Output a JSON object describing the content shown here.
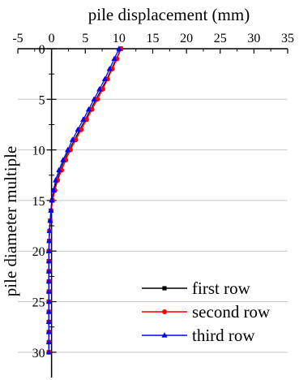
{
  "chart_data": {
    "type": "line",
    "title": "",
    "xlabel": "pile displacement (mm)",
    "ylabel": "pile diameter multiple",
    "xlim": [
      -5,
      35
    ],
    "ylim": [
      0,
      32.5
    ],
    "y_inverted": true,
    "x_axis_position": "top",
    "x_ticks": [
      "-5",
      "0",
      "5",
      "10",
      "15",
      "20",
      "25",
      "30",
      "35"
    ],
    "y_ticks": [
      "0",
      "5",
      "10",
      "15",
      "20",
      "25",
      "30"
    ],
    "x_tick_values": [
      -5,
      0,
      5,
      10,
      15,
      20,
      25,
      30,
      35
    ],
    "y_tick_values": [
      0,
      5,
      10,
      15,
      20,
      25,
      30
    ],
    "grid": "horizontal",
    "legend_position": "bottom-right",
    "series": [
      {
        "name": "first row",
        "color": "#000000",
        "marker": "square",
        "x": [
          10.3,
          9.6,
          8.9,
          8.2,
          7.4,
          6.6,
          5.8,
          5.0,
          4.2,
          3.4,
          2.6,
          1.9,
          1.3,
          0.8,
          0.4,
          0.1,
          -0.1,
          -0.2,
          -0.3,
          -0.35,
          -0.4,
          -0.4,
          -0.4,
          -0.4,
          -0.4,
          -0.4,
          -0.4,
          -0.4,
          -0.4,
          -0.4,
          -0.4
        ],
        "y": [
          0,
          1,
          2,
          3,
          4,
          5,
          6,
          7,
          8,
          9,
          10,
          11,
          12,
          13,
          14,
          15,
          16,
          17,
          18,
          19,
          20,
          21,
          22,
          23,
          24,
          25,
          26,
          27,
          28,
          29,
          30
        ]
      },
      {
        "name": "second row",
        "color": "#ff0000",
        "marker": "circle",
        "x": [
          10.3,
          9.7,
          9.0,
          8.3,
          7.6,
          6.8,
          6.0,
          5.2,
          4.4,
          3.6,
          2.8,
          2.1,
          1.5,
          0.9,
          0.5,
          0.15,
          -0.05,
          -0.2,
          -0.3,
          -0.35,
          -0.4,
          -0.4,
          -0.4,
          -0.4,
          -0.4,
          -0.4,
          -0.4,
          -0.4,
          -0.4,
          -0.4,
          -0.4
        ],
        "y": [
          0,
          1,
          2,
          3,
          4,
          5,
          6,
          7,
          8,
          9,
          10,
          11,
          12,
          13,
          14,
          15,
          16,
          17,
          18,
          19,
          20,
          21,
          22,
          23,
          24,
          25,
          26,
          27,
          28,
          29,
          30
        ]
      },
      {
        "name": "third row",
        "color": "#0000ff",
        "marker": "triangle",
        "x": [
          10.0,
          9.3,
          8.6,
          7.9,
          7.1,
          6.3,
          5.5,
          4.7,
          3.9,
          3.1,
          2.4,
          1.7,
          1.1,
          0.6,
          0.3,
          0.05,
          -0.1,
          -0.2,
          -0.3,
          -0.35,
          -0.4,
          -0.4,
          -0.4,
          -0.4,
          -0.4,
          -0.4,
          -0.4,
          -0.4,
          -0.4,
          -0.4,
          -0.4
        ],
        "y": [
          0,
          1,
          2,
          3,
          4,
          5,
          6,
          7,
          8,
          9,
          10,
          11,
          12,
          13,
          14,
          15,
          16,
          17,
          18,
          19,
          20,
          21,
          22,
          23,
          24,
          25,
          26,
          27,
          28,
          29,
          30
        ]
      }
    ]
  }
}
